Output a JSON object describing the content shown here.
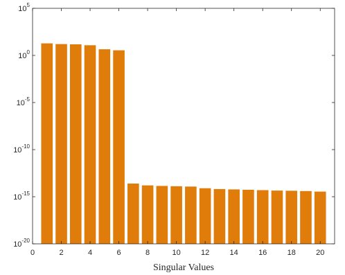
{
  "chart_data": {
    "type": "bar",
    "title": "",
    "xlabel": "Singular Values",
    "ylabel": "",
    "yscale": "log",
    "x": [
      1,
      2,
      3,
      4,
      5,
      6,
      7,
      8,
      9,
      10,
      11,
      12,
      13,
      14,
      15,
      16,
      17,
      18,
      19,
      20
    ],
    "values": [
      19,
      16,
      15,
      12,
      4.5,
      3.5,
      2.5e-14,
      1.6e-14,
      1.4e-14,
      1.3e-14,
      1.2e-14,
      8e-15,
      6.5e-15,
      6e-15,
      5.5e-15,
      5e-15,
      4.5e-15,
      4.3e-15,
      4e-15,
      3.5e-15
    ],
    "xlim": [
      0,
      21
    ],
    "ylim": [
      1e-20,
      100000.0
    ],
    "xticks": [
      "0",
      "2",
      "4",
      "6",
      "8",
      "10",
      "12",
      "14",
      "16",
      "18",
      "20"
    ],
    "yticks": [
      {
        "base": "10",
        "exp": "-20"
      },
      {
        "base": "10",
        "exp": "-15"
      },
      {
        "base": "10",
        "exp": "-10"
      },
      {
        "base": "10",
        "exp": "-5"
      },
      {
        "base": "10",
        "exp": "0"
      },
      {
        "base": "10",
        "exp": "5"
      }
    ],
    "bar_color": "#e07d0a",
    "grid": false,
    "box": true
  }
}
